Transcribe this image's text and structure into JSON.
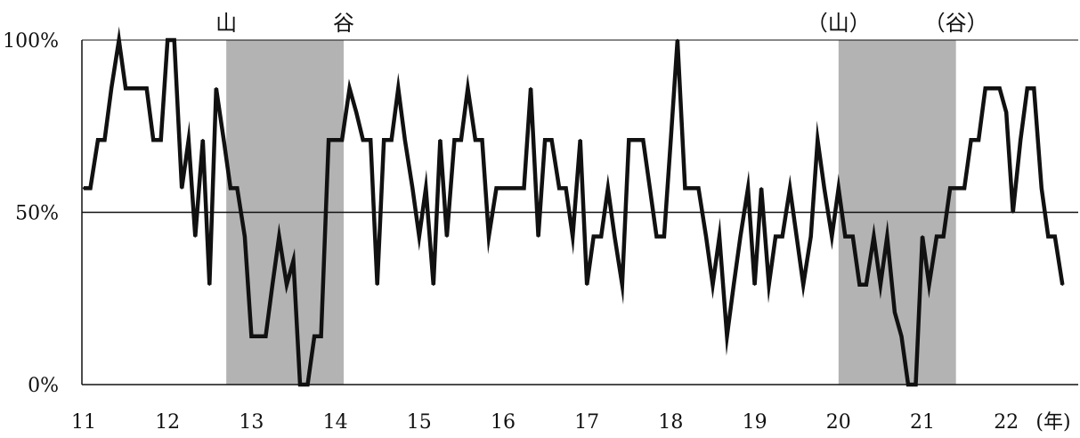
{
  "chart_data": {
    "type": "line",
    "title": "",
    "xlabel": "",
    "ylabel": "",
    "x_unit": "(年)",
    "xlim": [
      11,
      22.7
    ],
    "ylim": [
      0,
      100
    ],
    "x_ticks": [
      "11",
      "12",
      "13",
      "14",
      "15",
      "16",
      "17",
      "18",
      "19",
      "20",
      "21",
      "22"
    ],
    "y_ticks": [
      "0%",
      "50%",
      "100%"
    ],
    "reference_line": {
      "y": 50
    },
    "grid": false,
    "shaded_periods": [
      {
        "start": 12.7,
        "end": 14.1,
        "label_start": "山",
        "label_end": "谷"
      },
      {
        "start": 20.0,
        "end": 21.4,
        "label_start": "（山）",
        "label_end": "（谷）"
      }
    ],
    "colors": {
      "line": "#111111",
      "shade": "#b3b3b3"
    },
    "series": [
      {
        "points": [
          [
            11.0,
            57
          ],
          [
            11.08,
            57
          ],
          [
            11.17,
            71
          ],
          [
            11.25,
            71
          ],
          [
            11.33,
            86
          ],
          [
            11.42,
            100
          ],
          [
            11.5,
            86
          ],
          [
            11.58,
            86
          ],
          [
            11.67,
            86
          ],
          [
            11.75,
            86
          ],
          [
            11.83,
            71
          ],
          [
            11.92,
            71
          ],
          [
            12.0,
            100
          ],
          [
            12.08,
            100
          ],
          [
            12.17,
            57
          ],
          [
            12.25,
            71
          ],
          [
            12.33,
            43
          ],
          [
            12.42,
            71
          ],
          [
            12.5,
            29
          ],
          [
            12.58,
            86
          ],
          [
            12.67,
            71
          ],
          [
            12.75,
            57
          ],
          [
            12.83,
            57
          ],
          [
            12.92,
            43
          ],
          [
            13.0,
            14
          ],
          [
            13.08,
            14
          ],
          [
            13.17,
            14
          ],
          [
            13.25,
            29
          ],
          [
            13.33,
            43
          ],
          [
            13.42,
            29
          ],
          [
            13.5,
            36
          ],
          [
            13.58,
            0
          ],
          [
            13.67,
            0
          ],
          [
            13.75,
            14
          ],
          [
            13.83,
            14
          ],
          [
            13.92,
            71
          ],
          [
            14.0,
            71
          ],
          [
            14.08,
            71
          ],
          [
            14.17,
            86
          ],
          [
            14.25,
            79
          ],
          [
            14.33,
            71
          ],
          [
            14.42,
            71
          ],
          [
            14.5,
            29
          ],
          [
            14.58,
            71
          ],
          [
            14.67,
            71
          ],
          [
            14.75,
            86
          ],
          [
            14.83,
            71
          ],
          [
            14.92,
            57
          ],
          [
            15.0,
            43
          ],
          [
            15.08,
            57
          ],
          [
            15.17,
            29
          ],
          [
            15.25,
            71
          ],
          [
            15.33,
            43
          ],
          [
            15.42,
            71
          ],
          [
            15.5,
            71
          ],
          [
            15.58,
            86
          ],
          [
            15.67,
            71
          ],
          [
            15.75,
            71
          ],
          [
            15.83,
            43
          ],
          [
            15.92,
            57
          ],
          [
            16.0,
            57
          ],
          [
            16.08,
            57
          ],
          [
            16.17,
            57
          ],
          [
            16.25,
            57
          ],
          [
            16.33,
            86
          ],
          [
            16.42,
            43
          ],
          [
            16.5,
            71
          ],
          [
            16.58,
            71
          ],
          [
            16.67,
            57
          ],
          [
            16.75,
            57
          ],
          [
            16.83,
            43
          ],
          [
            16.92,
            71
          ],
          [
            17.0,
            29
          ],
          [
            17.08,
            43
          ],
          [
            17.17,
            43
          ],
          [
            17.25,
            57
          ],
          [
            17.33,
            43
          ],
          [
            17.42,
            29
          ],
          [
            17.5,
            71
          ],
          [
            17.58,
            71
          ],
          [
            17.67,
            71
          ],
          [
            17.75,
            57
          ],
          [
            17.83,
            43
          ],
          [
            17.92,
            43
          ],
          [
            18.0,
            71
          ],
          [
            18.08,
            100
          ],
          [
            18.17,
            57
          ],
          [
            18.25,
            57
          ],
          [
            18.33,
            57
          ],
          [
            18.42,
            43
          ],
          [
            18.5,
            29
          ],
          [
            18.58,
            43
          ],
          [
            18.67,
            14
          ],
          [
            18.75,
            29
          ],
          [
            18.83,
            43
          ],
          [
            18.92,
            57
          ],
          [
            19.0,
            29
          ],
          [
            19.08,
            57
          ],
          [
            19.17,
            29
          ],
          [
            19.25,
            43
          ],
          [
            19.33,
            43
          ],
          [
            19.42,
            57
          ],
          [
            19.5,
            43
          ],
          [
            19.58,
            29
          ],
          [
            19.67,
            43
          ],
          [
            19.75,
            71
          ],
          [
            19.83,
            57
          ],
          [
            19.92,
            43
          ],
          [
            20.0,
            57
          ],
          [
            20.08,
            43
          ],
          [
            20.17,
            43
          ],
          [
            20.25,
            29
          ],
          [
            20.33,
            29
          ],
          [
            20.42,
            43
          ],
          [
            20.5,
            29
          ],
          [
            20.58,
            43
          ],
          [
            20.67,
            21
          ],
          [
            20.75,
            14
          ],
          [
            20.83,
            0
          ],
          [
            20.92,
            0
          ],
          [
            21.0,
            43
          ],
          [
            21.08,
            29
          ],
          [
            21.17,
            43
          ],
          [
            21.25,
            43
          ],
          [
            21.33,
            57
          ],
          [
            21.42,
            57
          ],
          [
            21.5,
            57
          ],
          [
            21.58,
            71
          ],
          [
            21.67,
            71
          ],
          [
            21.75,
            86
          ],
          [
            21.83,
            86
          ],
          [
            21.92,
            86
          ],
          [
            22.0,
            79
          ],
          [
            22.08,
            50
          ],
          [
            22.17,
            71
          ],
          [
            22.25,
            86
          ],
          [
            22.33,
            86
          ],
          [
            22.42,
            57
          ],
          [
            22.5,
            43
          ],
          [
            22.58,
            43
          ],
          [
            22.67,
            29
          ]
        ]
      }
    ]
  }
}
